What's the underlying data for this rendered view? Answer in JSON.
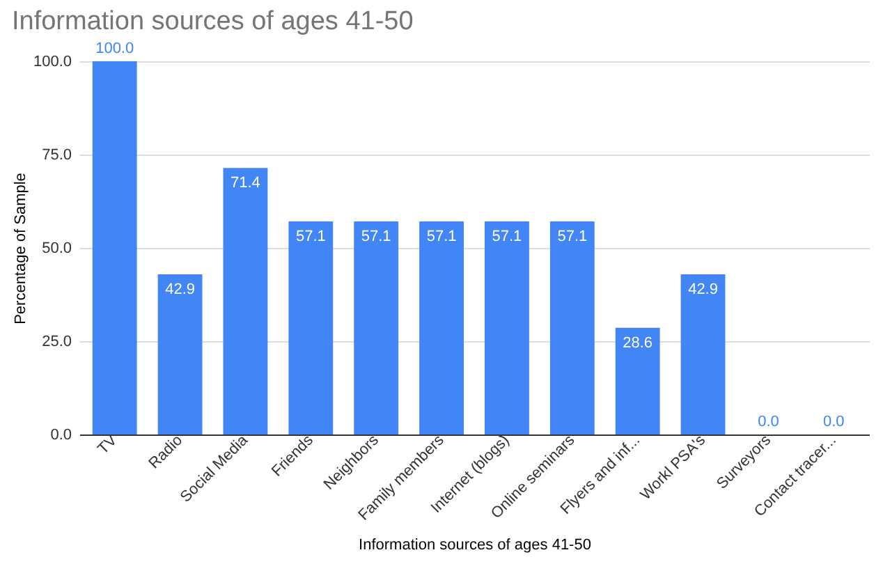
{
  "chart_data": {
    "type": "bar",
    "title": "Information sources of ages 41-50",
    "xlabel": "Information sources of ages 41-50",
    "ylabel": "Percentage of Sample",
    "categories": [
      "TV",
      "Radio",
      "Social Media",
      "Friends",
      "Neighbors",
      "Family members",
      "Internet (blogs)",
      "Online seminars",
      "Flyers and inf...",
      "Workl PSA's",
      "Surveyors",
      "Contact tracer..."
    ],
    "values": [
      100,
      42.9,
      71.4,
      57.1,
      57.1,
      57.1,
      57.1,
      57.1,
      28.6,
      42.9,
      0,
      0
    ],
    "value_labels": [
      "100.0",
      "42.9",
      "71.4",
      "57.1",
      "57.1",
      "57.1",
      "57.1",
      "57.1",
      "28.6",
      "42.9",
      "0.0",
      "0.0"
    ],
    "color": "#4285f4",
    "ylim": [
      0,
      100
    ],
    "yticks": [
      {
        "value": 0,
        "label": "0.0"
      },
      {
        "value": 25,
        "label": "25.0"
      },
      {
        "value": 50,
        "label": "50.0"
      },
      {
        "value": 75,
        "label": "75.0"
      },
      {
        "value": 100,
        "label": "100.0"
      }
    ],
    "grid": "y"
  }
}
